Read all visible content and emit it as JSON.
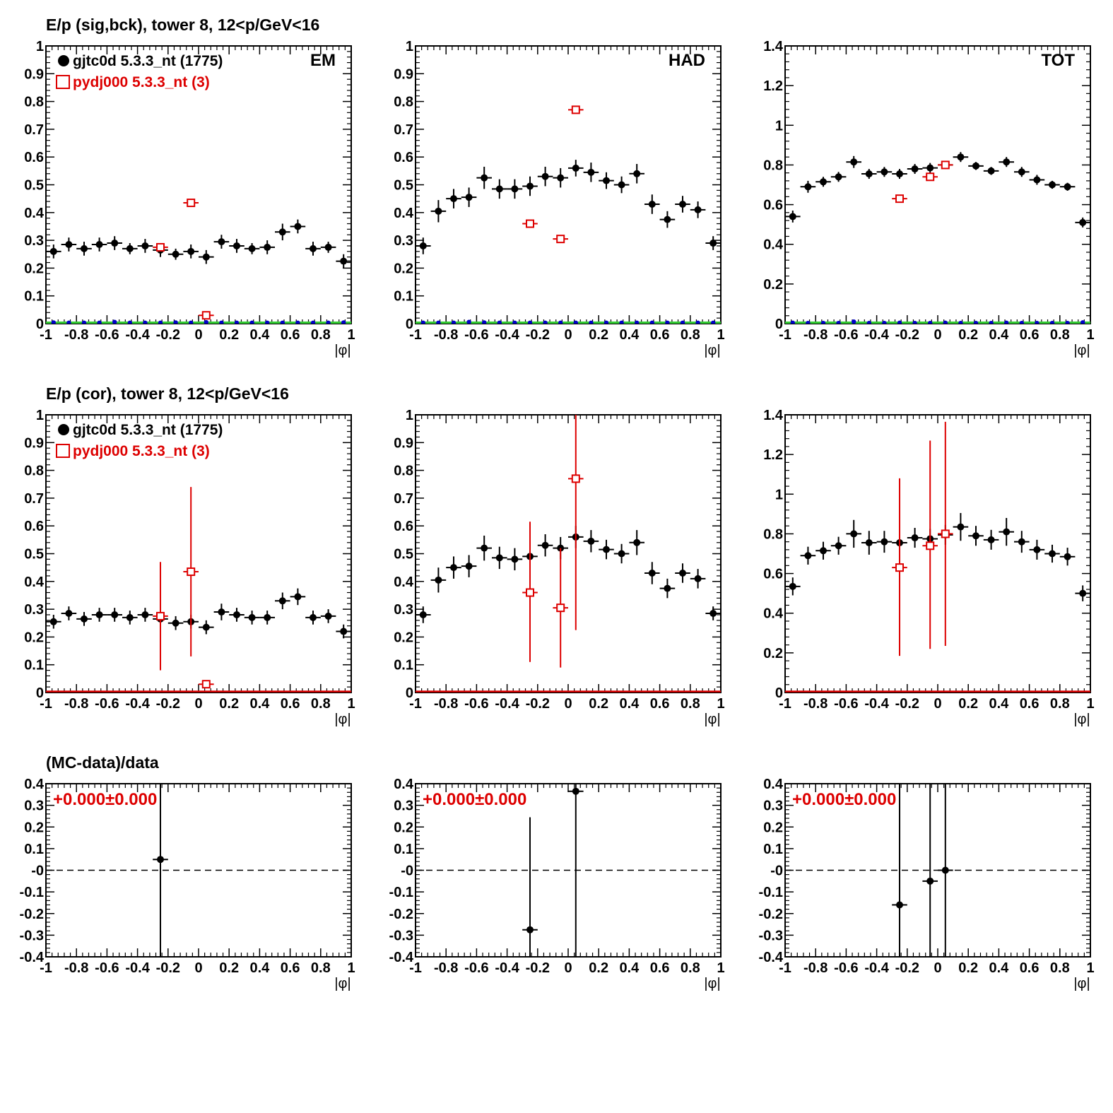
{
  "row_titles": [
    "E/p (sig,bck), tower 8, 12<p/GeV<16",
    "E/p (cor), tower 8, 12<p/GeV<16",
    "(MC-data)/data"
  ],
  "legend": {
    "data_label": "gjtc0d 5.3.3_nt (1775)",
    "mc_label": "pydj000 5.3.3_nt (3)"
  },
  "colors": {
    "data": "#000000",
    "mc": "#dd0000",
    "background_marker": "#0000cc",
    "baseline_green": "#33cc33",
    "baseline_red": "#dd0000"
  },
  "chart_data": [
    {
      "id": "sig-em",
      "type": "scatter",
      "panel_label": "EM",
      "xlabel": "|φ|",
      "xlim": [
        -1,
        1
      ],
      "ylim": [
        0,
        1
      ],
      "xticks": [
        "-1",
        "-0.8",
        "-0.6",
        "-0.4",
        "-0.2",
        "0",
        "0.2",
        "0.4",
        "0.6",
        "0.8",
        "1"
      ],
      "yticks": [
        "0",
        "0.1",
        "0.2",
        "0.3",
        "0.4",
        "0.5",
        "0.6",
        "0.7",
        "0.8",
        "0.9",
        "1"
      ],
      "legend": true,
      "baseline": "green",
      "series": [
        {
          "name": "gjtc0d 5.3.3_nt (1775)",
          "marker": "dot",
          "x": [
            -0.95,
            -0.85,
            -0.75,
            -0.65,
            -0.55,
            -0.45,
            -0.35,
            -0.25,
            -0.15,
            -0.05,
            0.05,
            0.15,
            0.25,
            0.35,
            0.45,
            0.55,
            0.65,
            0.75,
            0.85,
            0.95
          ],
          "y": [
            0.26,
            0.285,
            0.27,
            0.285,
            0.29,
            0.27,
            0.28,
            0.265,
            0.25,
            0.26,
            0.24,
            0.295,
            0.28,
            0.27,
            0.275,
            0.33,
            0.35,
            0.27,
            0.275,
            0.225
          ],
          "yerr": [
            0.025,
            0.025,
            0.025,
            0.025,
            0.025,
            0.02,
            0.025,
            0.025,
            0.02,
            0.025,
            0.025,
            0.025,
            0.025,
            0.02,
            0.025,
            0.03,
            0.025,
            0.025,
            0.02,
            0.025
          ]
        },
        {
          "name": "pydj000 5.3.3_nt (3)",
          "marker": "open-square",
          "x": [
            -0.25,
            -0.05,
            0.05
          ],
          "y": [
            0.275,
            0.435,
            0.03
          ],
          "yerr": [
            0,
            0,
            0
          ]
        },
        {
          "name": "",
          "marker": "blue-dot",
          "x": [
            -0.95,
            -0.85,
            -0.75,
            -0.65,
            -0.55,
            -0.45,
            -0.35,
            -0.25,
            -0.15,
            -0.05,
            0.05,
            0.15,
            0.25,
            0.35,
            0.45,
            0.55,
            0.65,
            0.75,
            0.85,
            0.95
          ],
          "y": [
            0.004,
            0.003,
            0.003,
            0.003,
            0.006,
            0.003,
            0.003,
            0.003,
            0.004,
            0.003,
            0.005,
            0.003,
            0.003,
            0.003,
            0.003,
            0.003,
            0.003,
            0.003,
            0.003,
            0.004
          ]
        }
      ]
    },
    {
      "id": "sig-had",
      "type": "scatter",
      "panel_label": "HAD",
      "xlabel": "|φ|",
      "xlim": [
        -1,
        1
      ],
      "ylim": [
        0,
        1
      ],
      "xticks": [
        "-1",
        "-0.8",
        "-0.6",
        "-0.4",
        "-0.2",
        "0",
        "0.2",
        "0.4",
        "0.6",
        "0.8",
        "1"
      ],
      "yticks": [
        "0",
        "0.1",
        "0.2",
        "0.3",
        "0.4",
        "0.5",
        "0.6",
        "0.7",
        "0.8",
        "0.9",
        "1"
      ],
      "legend": false,
      "baseline": "green",
      "series": [
        {
          "name": "gjtc0d 5.3.3_nt (1775)",
          "marker": "dot",
          "x": [
            -0.95,
            -0.85,
            -0.75,
            -0.65,
            -0.55,
            -0.45,
            -0.35,
            -0.25,
            -0.15,
            -0.05,
            0.05,
            0.15,
            0.25,
            0.35,
            0.45,
            0.55,
            0.65,
            0.75,
            0.85,
            0.95
          ],
          "y": [
            0.28,
            0.405,
            0.45,
            0.455,
            0.525,
            0.485,
            0.485,
            0.495,
            0.53,
            0.525,
            0.56,
            0.545,
            0.515,
            0.5,
            0.54,
            0.43,
            0.375,
            0.43,
            0.41,
            0.29
          ],
          "yerr": [
            0.03,
            0.04,
            0.035,
            0.035,
            0.04,
            0.035,
            0.035,
            0.035,
            0.035,
            0.035,
            0.03,
            0.035,
            0.03,
            0.03,
            0.035,
            0.035,
            0.03,
            0.03,
            0.03,
            0.025
          ]
        },
        {
          "name": "pydj000 5.3.3_nt (3)",
          "marker": "open-square",
          "x": [
            -0.25,
            -0.05,
            0.05
          ],
          "y": [
            0.36,
            0.305,
            0.77
          ],
          "yerr": [
            0,
            0,
            0
          ]
        },
        {
          "name": "",
          "marker": "blue-dot",
          "x": [
            -0.95,
            -0.85,
            -0.75,
            -0.65,
            -0.55,
            -0.45,
            -0.35,
            -0.25,
            -0.15,
            -0.05,
            0.05,
            0.15,
            0.25,
            0.35,
            0.45,
            0.55,
            0.65,
            0.75,
            0.85,
            0.95
          ],
          "y": [
            0.003,
            0.003,
            0.003,
            0.006,
            0.004,
            0.003,
            0.003,
            0.003,
            0.003,
            0.003,
            0.003,
            0.003,
            0.003,
            0.003,
            0.003,
            0.003,
            0.003,
            0.003,
            0.003,
            0.003
          ]
        }
      ]
    },
    {
      "id": "sig-tot",
      "type": "scatter",
      "panel_label": "TOT",
      "xlabel": "|φ|",
      "xlim": [
        -1,
        1
      ],
      "ylim": [
        0,
        1.4
      ],
      "xticks": [
        "-1",
        "-0.8",
        "-0.6",
        "-0.4",
        "-0.2",
        "0",
        "0.2",
        "0.4",
        "0.6",
        "0.8",
        "1"
      ],
      "yticks": [
        "0",
        "0.2",
        "0.4",
        "0.6",
        "0.8",
        "1",
        "1.2",
        "1.4"
      ],
      "legend": false,
      "baseline": "green",
      "series": [
        {
          "name": "gjtc0d 5.3.3_nt (1775)",
          "marker": "dot",
          "x": [
            -0.95,
            -0.85,
            -0.75,
            -0.65,
            -0.55,
            -0.45,
            -0.35,
            -0.25,
            -0.15,
            -0.05,
            0.05,
            0.15,
            0.25,
            0.35,
            0.45,
            0.55,
            0.65,
            0.75,
            0.85,
            0.95
          ],
          "y": [
            0.54,
            0.69,
            0.715,
            0.74,
            0.815,
            0.755,
            0.765,
            0.755,
            0.78,
            0.785,
            0.8,
            0.84,
            0.795,
            0.77,
            0.815,
            0.765,
            0.725,
            0.7,
            0.69,
            0.51
          ],
          "yerr": [
            0.03,
            0.03,
            0.025,
            0.025,
            0.03,
            0.025,
            0.025,
            0.025,
            0.025,
            0.025,
            0.02,
            0.025,
            0.02,
            0.02,
            0.025,
            0.025,
            0.025,
            0.02,
            0.02,
            0.025
          ]
        },
        {
          "name": "pydj000 5.3.3_nt (3)",
          "marker": "open-square",
          "x": [
            -0.25,
            -0.05,
            0.05
          ],
          "y": [
            0.63,
            0.74,
            0.8
          ],
          "yerr": [
            0,
            0,
            0
          ]
        },
        {
          "name": "",
          "marker": "blue-dot",
          "x": [
            -0.95,
            -0.85,
            -0.75,
            -0.65,
            -0.55,
            -0.45,
            -0.35,
            -0.25,
            -0.15,
            -0.05,
            0.05,
            0.15,
            0.25,
            0.35,
            0.45,
            0.55,
            0.65,
            0.75,
            0.85,
            0.95
          ],
          "y": [
            0.004,
            0.003,
            0.003,
            0.003,
            0.01,
            0.003,
            0.003,
            0.004,
            0.003,
            0.003,
            0.004,
            0.003,
            0.003,
            0.003,
            0.004,
            0.003,
            0.003,
            0.003,
            0.003,
            0.006
          ]
        }
      ]
    },
    {
      "id": "cor-em",
      "type": "scatter",
      "xlabel": "|φ|",
      "xlim": [
        -1,
        1
      ],
      "ylim": [
        0,
        1
      ],
      "xticks": [
        "-1",
        "-0.8",
        "-0.6",
        "-0.4",
        "-0.2",
        "0",
        "0.2",
        "0.4",
        "0.6",
        "0.8",
        "1"
      ],
      "yticks": [
        "0",
        "0.1",
        "0.2",
        "0.3",
        "0.4",
        "0.5",
        "0.6",
        "0.7",
        "0.8",
        "0.9",
        "1"
      ],
      "legend": true,
      "baseline": "red",
      "series": [
        {
          "name": "gjtc0d 5.3.3_nt (1775)",
          "marker": "dot",
          "x": [
            -0.95,
            -0.85,
            -0.75,
            -0.65,
            -0.55,
            -0.45,
            -0.35,
            -0.25,
            -0.15,
            -0.05,
            0.05,
            0.15,
            0.25,
            0.35,
            0.45,
            0.55,
            0.65,
            0.75,
            0.85,
            0.95
          ],
          "y": [
            0.255,
            0.285,
            0.265,
            0.28,
            0.28,
            0.27,
            0.28,
            0.265,
            0.25,
            0.255,
            0.235,
            0.29,
            0.28,
            0.27,
            0.27,
            0.33,
            0.345,
            0.27,
            0.275,
            0.22
          ],
          "yerr": [
            0.025,
            0.025,
            0.025,
            0.025,
            0.025,
            0.025,
            0.025,
            0.025,
            0.025,
            0.025,
            0.025,
            0.03,
            0.025,
            0.025,
            0.025,
            0.03,
            0.03,
            0.025,
            0.025,
            0.025
          ]
        },
        {
          "name": "pydj000 5.3.3_nt (3)",
          "marker": "open-square",
          "x": [
            -0.25,
            -0.05,
            0.05
          ],
          "y": [
            0.275,
            0.435,
            0.03
          ],
          "yerr_low": [
            0.195,
            0.305,
            0.0
          ],
          "yerr_high": [
            0.195,
            0.305,
            0.0
          ]
        }
      ]
    },
    {
      "id": "cor-had",
      "type": "scatter",
      "xlabel": "|φ|",
      "xlim": [
        -1,
        1
      ],
      "ylim": [
        0,
        1
      ],
      "xticks": [
        "-1",
        "-0.8",
        "-0.6",
        "-0.4",
        "-0.2",
        "0",
        "0.2",
        "0.4",
        "0.6",
        "0.8",
        "1"
      ],
      "yticks": [
        "0",
        "0.1",
        "0.2",
        "0.3",
        "0.4",
        "0.5",
        "0.6",
        "0.7",
        "0.8",
        "0.9",
        "1"
      ],
      "legend": false,
      "baseline": "red",
      "series": [
        {
          "name": "gjtc0d 5.3.3_nt (1775)",
          "marker": "dot",
          "x": [
            -0.95,
            -0.85,
            -0.75,
            -0.65,
            -0.55,
            -0.45,
            -0.35,
            -0.25,
            -0.15,
            -0.05,
            0.05,
            0.15,
            0.25,
            0.35,
            0.45,
            0.55,
            0.65,
            0.75,
            0.85,
            0.95
          ],
          "y": [
            0.28,
            0.405,
            0.45,
            0.455,
            0.52,
            0.485,
            0.48,
            0.49,
            0.53,
            0.52,
            0.56,
            0.545,
            0.515,
            0.5,
            0.54,
            0.43,
            0.375,
            0.43,
            0.41,
            0.285
          ],
          "yerr": [
            0.03,
            0.045,
            0.04,
            0.04,
            0.045,
            0.04,
            0.04,
            0.04,
            0.04,
            0.04,
            0.04,
            0.04,
            0.035,
            0.035,
            0.045,
            0.04,
            0.035,
            0.035,
            0.035,
            0.025
          ]
        },
        {
          "name": "pydj000 5.3.3_nt (3)",
          "marker": "open-square",
          "x": [
            -0.25,
            -0.05,
            0.05
          ],
          "y": [
            0.36,
            0.305,
            0.77
          ],
          "yerr_low": [
            0.25,
            0.215,
            0.545
          ],
          "yerr_high": [
            0.255,
            0.215,
            0.23
          ]
        }
      ]
    },
    {
      "id": "cor-tot",
      "type": "scatter",
      "xlabel": "|φ|",
      "xlim": [
        -1,
        1
      ],
      "ylim": [
        0,
        1.4
      ],
      "xticks": [
        "-1",
        "-0.8",
        "-0.6",
        "-0.4",
        "-0.2",
        "0",
        "0.2",
        "0.4",
        "0.6",
        "0.8",
        "1"
      ],
      "yticks": [
        "0",
        "0.2",
        "0.4",
        "0.6",
        "0.8",
        "1",
        "1.2",
        "1.4"
      ],
      "legend": false,
      "baseline": "red",
      "series": [
        {
          "name": "gjtc0d 5.3.3_nt (1775)",
          "marker": "dot",
          "x": [
            -0.95,
            -0.85,
            -0.75,
            -0.65,
            -0.55,
            -0.45,
            -0.35,
            -0.25,
            -0.15,
            -0.05,
            0.05,
            0.15,
            0.25,
            0.35,
            0.45,
            0.55,
            0.65,
            0.75,
            0.85,
            0.95
          ],
          "y": [
            0.535,
            0.69,
            0.715,
            0.74,
            0.8,
            0.755,
            0.76,
            0.755,
            0.78,
            0.775,
            0.795,
            0.835,
            0.79,
            0.77,
            0.81,
            0.76,
            0.72,
            0.7,
            0.685,
            0.5
          ],
          "yerr": [
            0.045,
            0.045,
            0.045,
            0.045,
            0.07,
            0.06,
            0.055,
            0.06,
            0.05,
            0.05,
            0.05,
            0.07,
            0.05,
            0.05,
            0.07,
            0.055,
            0.05,
            0.045,
            0.045,
            0.04
          ]
        },
        {
          "name": "pydj000 5.3.3_nt (3)",
          "marker": "open-square",
          "x": [
            -0.25,
            -0.05,
            0.05
          ],
          "y": [
            0.63,
            0.74,
            0.8
          ],
          "yerr_low": [
            0.445,
            0.52,
            0.565
          ],
          "yerr_high": [
            0.45,
            0.53,
            0.565
          ]
        }
      ]
    },
    {
      "id": "ratio-em",
      "type": "scatter",
      "xlabel": "|φ|",
      "xlim": [
        -1,
        1
      ],
      "ylim": [
        -0.4,
        0.4
      ],
      "xticks": [
        "-1",
        "-0.8",
        "-0.6",
        "-0.4",
        "-0.2",
        "0",
        "0.2",
        "0.4",
        "0.6",
        "0.8",
        "1"
      ],
      "yticks": [
        "-0.4",
        "-0.3",
        "-0.2",
        "-0.1",
        "-0",
        "0.1",
        "0.2",
        "0.3",
        "0.4"
      ],
      "fit_label": "+0.000±0.000",
      "dashed_zero": true,
      "series": [
        {
          "name": "",
          "marker": "dot",
          "x": [
            -0.25
          ],
          "y": [
            0.05
          ],
          "yerr_low": [
            0.45
          ],
          "yerr_high": [
            0.35
          ]
        }
      ]
    },
    {
      "id": "ratio-had",
      "type": "scatter",
      "xlabel": "|φ|",
      "xlim": [
        -1,
        1
      ],
      "ylim": [
        -0.4,
        0.4
      ],
      "xticks": [
        "-1",
        "-0.8",
        "-0.6",
        "-0.4",
        "-0.2",
        "0",
        "0.2",
        "0.4",
        "0.6",
        "0.8",
        "1"
      ],
      "yticks": [
        "-0.4",
        "-0.3",
        "-0.2",
        "-0.1",
        "-0",
        "0.1",
        "0.2",
        "0.3",
        "0.4"
      ],
      "fit_label": "+0.000±0.000",
      "dashed_zero": true,
      "series": [
        {
          "name": "",
          "marker": "dot",
          "x": [
            -0.25,
            0.05
          ],
          "y": [
            -0.275,
            0.365
          ],
          "yerr_low": [
            0.125,
            0.765
          ],
          "yerr_high": [
            0.52,
            0.035
          ]
        }
      ]
    },
    {
      "id": "ratio-tot",
      "type": "scatter",
      "xlabel": "|φ|",
      "xlim": [
        -1,
        1
      ],
      "ylim": [
        -0.4,
        0.4
      ],
      "xticks": [
        "-1",
        "-0.8",
        "-0.6",
        "-0.4",
        "-0.2",
        "0",
        "0.2",
        "0.4",
        "0.6",
        "0.8",
        "1"
      ],
      "yticks": [
        "-0.4",
        "-0.3",
        "-0.2",
        "-0.1",
        "-0",
        "0.1",
        "0.2",
        "0.3",
        "0.4"
      ],
      "fit_label": "+0.000±0.000",
      "dashed_zero": true,
      "series": [
        {
          "name": "",
          "marker": "dot",
          "x": [
            -0.25,
            -0.05,
            0.05
          ],
          "y": [
            -0.16,
            -0.05,
            0.0
          ],
          "yerr_low": [
            0.24,
            0.35,
            0.4
          ],
          "yerr_high": [
            0.56,
            0.45,
            0.4
          ]
        }
      ]
    }
  ]
}
